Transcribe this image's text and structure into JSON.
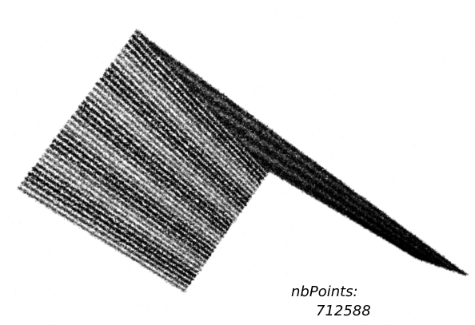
{
  "viewer": {
    "background_color": "#ffffff",
    "point_color": "#000000",
    "subject": "gable roof point cloud"
  },
  "stats": {
    "label": "nbPoints:",
    "value": "712588"
  }
}
